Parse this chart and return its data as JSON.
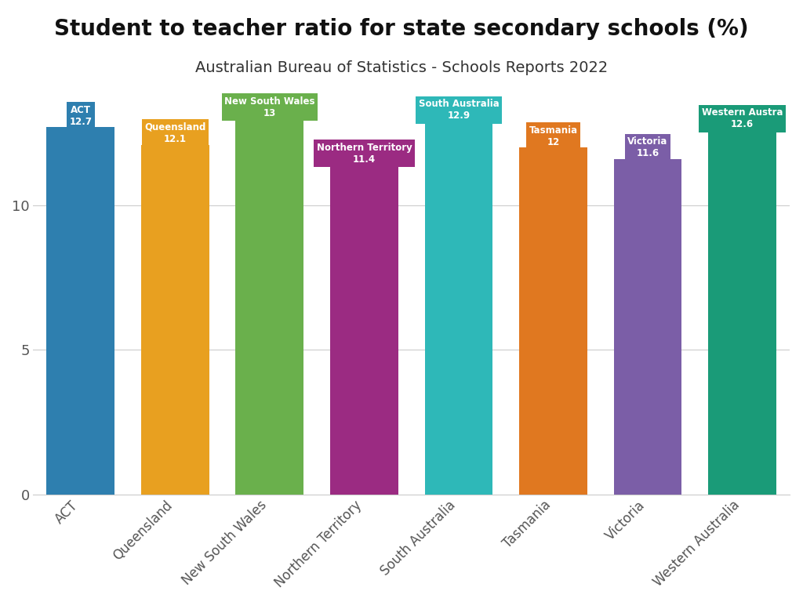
{
  "title": "Student to teacher ratio for state secondary schools (%)",
  "subtitle": "Australian Bureau of Statistics - Schools Reports 2022",
  "categories": [
    "ACT",
    "Queensland",
    "New South Wales",
    "Northern Territory",
    "South Australia",
    "Tasmania",
    "Victoria",
    "Western Australia"
  ],
  "values": [
    12.7,
    12.1,
    13.0,
    11.4,
    12.9,
    12.0,
    11.6,
    12.6
  ],
  "colors": [
    "#2e7faf",
    "#e8a020",
    "#6ab04c",
    "#9b2b82",
    "#2eb8b8",
    "#e07820",
    "#7b5ea7",
    "#1a9b78"
  ],
  "ylim": [
    0,
    14.2
  ],
  "yticks": [
    0,
    5,
    10
  ],
  "background_color": "#ffffff",
  "title_fontsize": 20,
  "subtitle_fontsize": 14,
  "bar_label_names": [
    "ACT",
    "Queensland",
    "New South Wales",
    "Northern Territory",
    "South Australia",
    "Tasmania",
    "Victoria",
    "Western Austra"
  ],
  "bar_label_values": [
    "12.7",
    "12.1",
    "13",
    "11.4",
    "12.9",
    "12",
    "11.6",
    "12.6"
  ],
  "grid_color": "#cccccc",
  "bar_width": 0.72
}
